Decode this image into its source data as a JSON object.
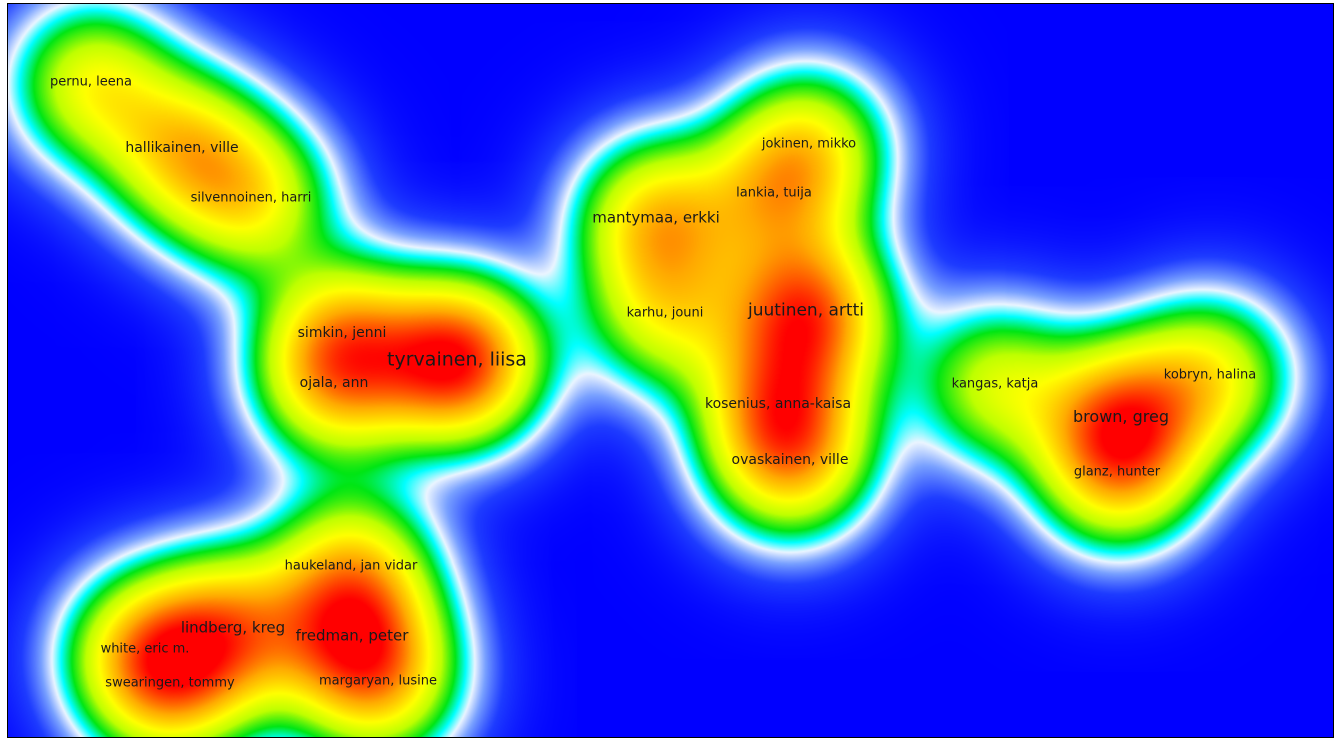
{
  "map": {
    "type": "density-visualization",
    "palette": [
      "#0000ff",
      "#00ffff",
      "#00e000",
      "#ffff00",
      "#ff9900",
      "#ff0000"
    ],
    "nodes": [
      {
        "label": "pernu, leena",
        "weight": 0.9
      },
      {
        "label": "hallikainen, ville",
        "weight": 1.0
      },
      {
        "label": "silvennoinen, harri",
        "weight": 0.9
      },
      {
        "label": "jokinen, mikko",
        "weight": 0.8
      },
      {
        "label": "lankia, tuija",
        "weight": 0.8
      },
      {
        "label": "mantymaa, erkki",
        "weight": 1.1
      },
      {
        "label": "karhu, jouni",
        "weight": 0.8
      },
      {
        "label": "juutinen, artti",
        "weight": 1.5
      },
      {
        "label": "simkin, jenni",
        "weight": 0.9
      },
      {
        "label": "tyrvainen, liisa",
        "weight": 1.8
      },
      {
        "label": "ojala, ann",
        "weight": 0.9
      },
      {
        "label": "kangas, katja",
        "weight": 0.8
      },
      {
        "label": "kobryn, halina",
        "weight": 0.9
      },
      {
        "label": "brown, greg",
        "weight": 1.2
      },
      {
        "label": "kosenius, anna-kaisa",
        "weight": 1.0
      },
      {
        "label": "ovaskainen, ville",
        "weight": 1.0
      },
      {
        "label": "glanz, hunter",
        "weight": 0.9
      },
      {
        "label": "haukeland, jan vidar",
        "weight": 0.9
      },
      {
        "label": "lindberg, kreg",
        "weight": 1.1
      },
      {
        "label": "fredman, peter",
        "weight": 1.0
      },
      {
        "label": "white, eric m.",
        "weight": 0.9
      },
      {
        "label": "swearingen, tommy",
        "weight": 0.9
      },
      {
        "label": "margaryan, lusine",
        "weight": 0.9
      }
    ]
  }
}
